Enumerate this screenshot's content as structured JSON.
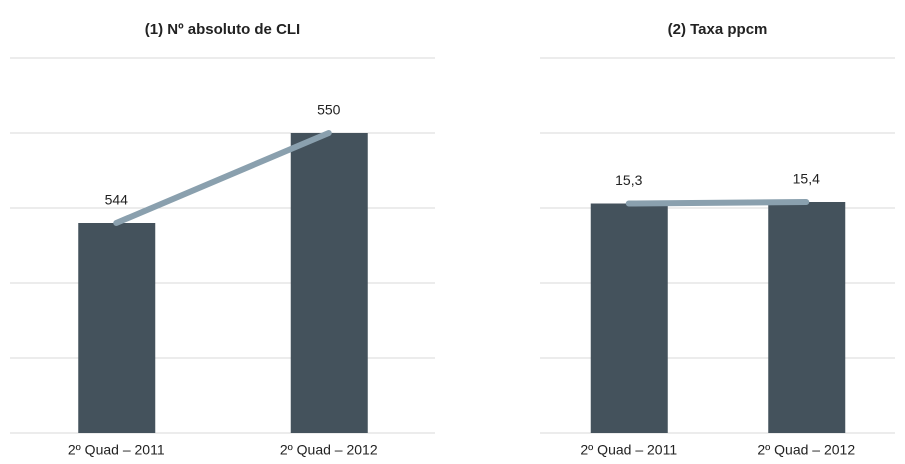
{
  "chart_data": [
    {
      "type": "bar",
      "title": "(1) Nº absoluto de CLI",
      "categories": [
        "2º Quad – 2011",
        "2º Quad – 2012"
      ],
      "values": [
        544,
        550
      ],
      "bar_color": "#44525c",
      "line_color": "#8aa0ae",
      "line_overlay": true,
      "ylim": [
        530,
        555
      ],
      "yticks": [
        530,
        535,
        540,
        545,
        550,
        555
      ],
      "grid": true
    },
    {
      "type": "bar",
      "title": "(2) Taxa ppcm",
      "categories": [
        "2º Quad – 2011",
        "2º Quad – 2012"
      ],
      "values": [
        15.3,
        15.4
      ],
      "value_labels": [
        "15,3",
        "15,4"
      ],
      "bar_color": "#44525c",
      "line_color": "#8aa0ae",
      "line_overlay": true,
      "ylim": [
        0,
        25
      ],
      "yticks": [
        0,
        5,
        10,
        15,
        20,
        25
      ],
      "grid": true
    }
  ]
}
